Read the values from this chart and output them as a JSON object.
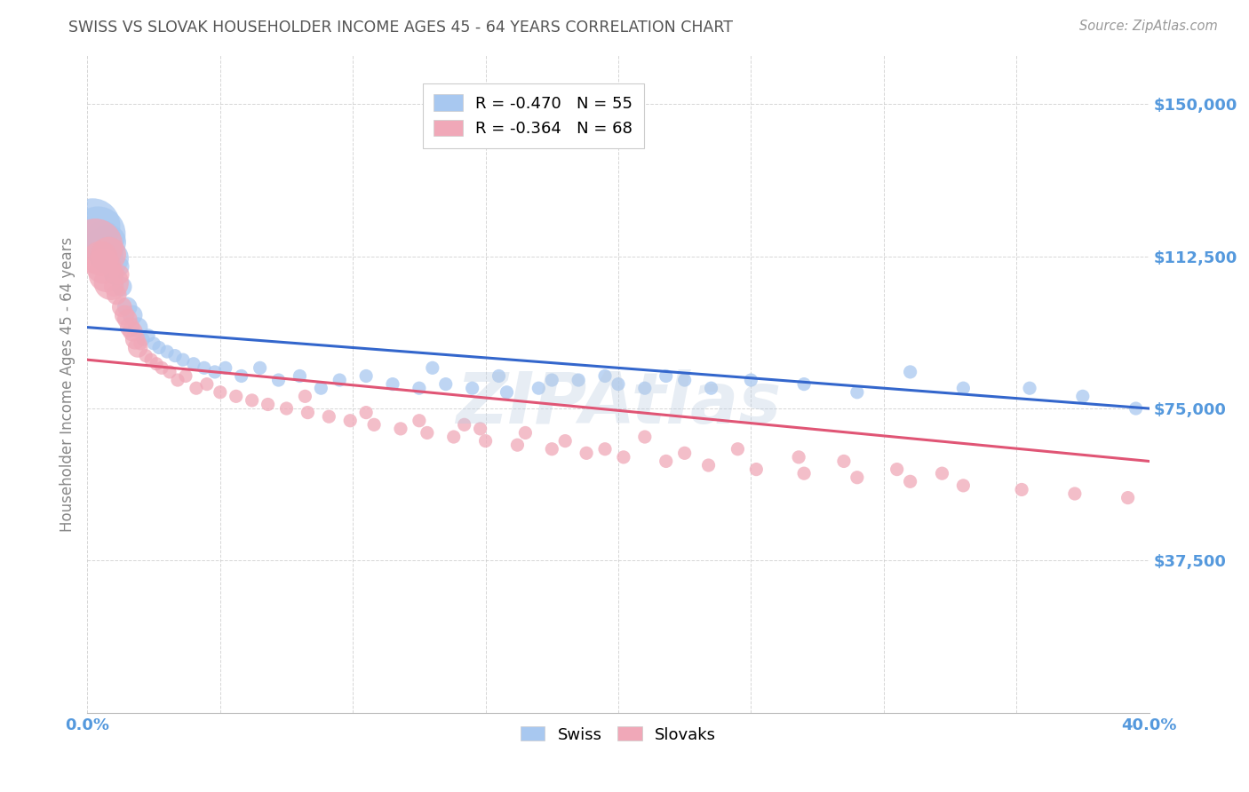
{
  "title": "SWISS VS SLOVAK HOUSEHOLDER INCOME AGES 45 - 64 YEARS CORRELATION CHART",
  "source": "Source: ZipAtlas.com",
  "ylabel": "Householder Income Ages 45 - 64 years",
  "xlim": [
    0.0,
    0.4
  ],
  "ylim": [
    0,
    162000
  ],
  "ytick_vals": [
    37500,
    75000,
    112500,
    150000
  ],
  "ytick_labels": [
    "$37,500",
    "$75,000",
    "$112,500",
    "$150,000"
  ],
  "xtick_vals": [
    0.0,
    0.05,
    0.1,
    0.15,
    0.2,
    0.25,
    0.3,
    0.35,
    0.4
  ],
  "swiss_color": "#A8C8F0",
  "slovak_color": "#F0A8B8",
  "swiss_line_color": "#3366CC",
  "slovak_line_color": "#E05575",
  "tick_color": "#5599DD",
  "ylabel_color": "#888888",
  "title_color": "#555555",
  "source_color": "#999999",
  "legend_swiss_R": "-0.470",
  "legend_swiss_N": "55",
  "legend_slovak_R": "-0.364",
  "legend_slovak_N": "68",
  "watermark": "ZIPAtlas",
  "swiss_line_y0": 95000,
  "swiss_line_y1": 75000,
  "slovak_line_y0": 87000,
  "slovak_line_y1": 62000,
  "swiss_x": [
    0.002,
    0.004,
    0.005,
    0.006,
    0.007,
    0.008,
    0.009,
    0.01,
    0.012,
    0.013,
    0.015,
    0.017,
    0.019,
    0.021,
    0.023,
    0.025,
    0.027,
    0.03,
    0.033,
    0.036,
    0.04,
    0.044,
    0.048,
    0.052,
    0.058,
    0.065,
    0.072,
    0.08,
    0.088,
    0.095,
    0.105,
    0.115,
    0.125,
    0.135,
    0.145,
    0.158,
    0.17,
    0.185,
    0.2,
    0.218,
    0.235,
    0.25,
    0.27,
    0.29,
    0.31,
    0.33,
    0.355,
    0.375,
    0.395,
    0.13,
    0.155,
    0.175,
    0.195,
    0.21,
    0.225
  ],
  "swiss_y": [
    120000,
    118000,
    115000,
    117000,
    113000,
    116000,
    112000,
    108000,
    110000,
    105000,
    100000,
    98000,
    95000,
    92000,
    93000,
    91000,
    90000,
    89000,
    88000,
    87000,
    86000,
    85000,
    84000,
    85000,
    83000,
    85000,
    82000,
    83000,
    80000,
    82000,
    83000,
    81000,
    80000,
    81000,
    80000,
    79000,
    80000,
    82000,
    81000,
    83000,
    80000,
    82000,
    81000,
    79000,
    84000,
    80000,
    80000,
    78000,
    75000,
    85000,
    83000,
    82000,
    83000,
    80000,
    82000
  ],
  "slovak_x": [
    0.003,
    0.005,
    0.006,
    0.007,
    0.008,
    0.009,
    0.01,
    0.011,
    0.012,
    0.013,
    0.014,
    0.015,
    0.016,
    0.017,
    0.018,
    0.019,
    0.02,
    0.022,
    0.024,
    0.026,
    0.028,
    0.031,
    0.034,
    0.037,
    0.041,
    0.045,
    0.05,
    0.056,
    0.062,
    0.068,
    0.075,
    0.083,
    0.091,
    0.099,
    0.108,
    0.118,
    0.128,
    0.138,
    0.15,
    0.162,
    0.175,
    0.188,
    0.202,
    0.218,
    0.234,
    0.252,
    0.27,
    0.29,
    0.31,
    0.33,
    0.352,
    0.372,
    0.392,
    0.142,
    0.165,
    0.21,
    0.245,
    0.268,
    0.18,
    0.195,
    0.225,
    0.285,
    0.305,
    0.322,
    0.082,
    0.105,
    0.125,
    0.148
  ],
  "slovak_y": [
    115000,
    112000,
    110000,
    108000,
    113000,
    106000,
    105000,
    103000,
    108000,
    100000,
    98000,
    97000,
    95000,
    94000,
    92000,
    90000,
    91000,
    88000,
    87000,
    86000,
    85000,
    84000,
    82000,
    83000,
    80000,
    81000,
    79000,
    78000,
    77000,
    76000,
    75000,
    74000,
    73000,
    72000,
    71000,
    70000,
    69000,
    68000,
    67000,
    66000,
    65000,
    64000,
    63000,
    62000,
    61000,
    60000,
    59000,
    58000,
    57000,
    56000,
    55000,
    54000,
    53000,
    71000,
    69000,
    68000,
    65000,
    63000,
    67000,
    65000,
    64000,
    62000,
    60000,
    59000,
    78000,
    74000,
    72000,
    70000
  ]
}
